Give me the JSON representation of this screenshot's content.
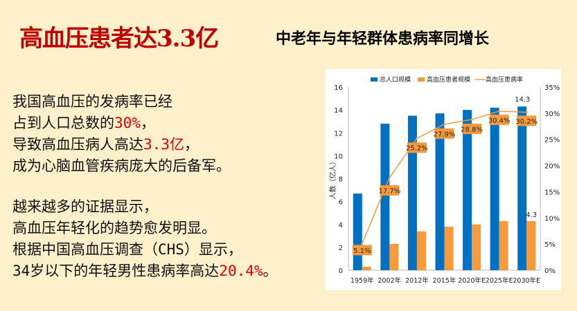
{
  "header": {
    "title": "高血压患者达3.3亿",
    "subtitle": "中老年与年轻群体患病率同增长"
  },
  "body": {
    "para1": [
      {
        "text": "我国高血压的发病率已经",
        "highlight": ""
      },
      {
        "text": "占到人口总数的",
        "highlight": "30%",
        "suffix": "，"
      },
      {
        "text": "导致高血压病人高达",
        "highlight": "3.3亿",
        "suffix": "，"
      },
      {
        "text": "成为心脑血管疾病庞大的后备军。",
        "highlight": ""
      }
    ],
    "para2": [
      {
        "text": "越来越多的证据显示，",
        "highlight": ""
      },
      {
        "text": "高血压年轻化的趋势愈发明显。",
        "highlight": ""
      },
      {
        "text": "根据中国高血压调查（CHS）显示，",
        "highlight": ""
      },
      {
        "text": "34岁以下的年轻男性患病率高达",
        "highlight": "20.4%",
        "suffix": "。"
      }
    ]
  },
  "chart_data": {
    "type": "bar",
    "categories": [
      "1959年",
      "2002年",
      "2012年",
      "2015年",
      "2020年E",
      "2025年E",
      "2030年E"
    ],
    "series": [
      {
        "name": "总人口规模",
        "type": "bar",
        "axis": "left",
        "color": "#0070c0",
        "values": [
          6.7,
          12.8,
          13.5,
          13.7,
          14.0,
          14.2,
          14.3
        ]
      },
      {
        "name": "高血压患者规模",
        "type": "bar",
        "axis": "left",
        "color": "#f79a3c",
        "values": [
          0.3,
          2.3,
          3.4,
          3.8,
          4.0,
          4.3,
          4.3
        ]
      },
      {
        "name": "高血压患病率",
        "type": "line",
        "axis": "right",
        "color": "#f79a3c",
        "values": [
          5.1,
          17.7,
          25.2,
          27.9,
          28.8,
          30.4,
          30.2
        ],
        "labels": [
          "5.1%",
          "17.7%",
          "25.2%",
          "27.9%",
          "28.8%",
          "30.4%",
          "30.2%"
        ]
      }
    ],
    "annotations": [
      "14.3",
      "4.3"
    ],
    "ylabel": "人数（亿人）",
    "ylim": [
      0,
      16
    ],
    "yticks": [
      "0",
      "2",
      "4",
      "6",
      "8",
      "10",
      "12",
      "14",
      "16"
    ],
    "y2lim": [
      0,
      35
    ],
    "y2ticks": [
      "0%",
      "5%",
      "10%",
      "15%",
      "20%",
      "25%",
      "30%",
      "35%"
    ],
    "legend": "top"
  }
}
